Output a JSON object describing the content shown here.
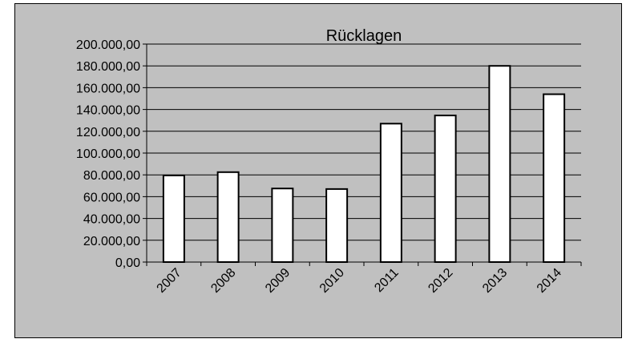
{
  "chart_data": {
    "type": "bar",
    "title": "Rücklagen",
    "categories": [
      "2007",
      "2008",
      "2009",
      "2010",
      "2011",
      "2012",
      "2013",
      "2014"
    ],
    "values": [
      79500,
      82500,
      67500,
      67000,
      127000,
      134500,
      180000,
      154000
    ],
    "ylim": [
      0,
      200000
    ],
    "y_ticks": [
      0,
      20000,
      40000,
      60000,
      80000,
      100000,
      120000,
      140000,
      160000,
      180000,
      200000
    ],
    "y_tick_labels": [
      "0,00",
      "20.000,00",
      "40.000,00",
      "60.000,00",
      "80.000,00",
      "100.000,00",
      "120.000,00",
      "140.000,00",
      "160.000,00",
      "180.000,00",
      "200.000,00"
    ],
    "grid": true,
    "legend": false,
    "xlabel": "",
    "ylabel": "",
    "colors": {
      "background": "#c0c0c0",
      "bar_fill": "#ffffff",
      "bar_stroke": "#000000",
      "grid": "#000000"
    }
  }
}
